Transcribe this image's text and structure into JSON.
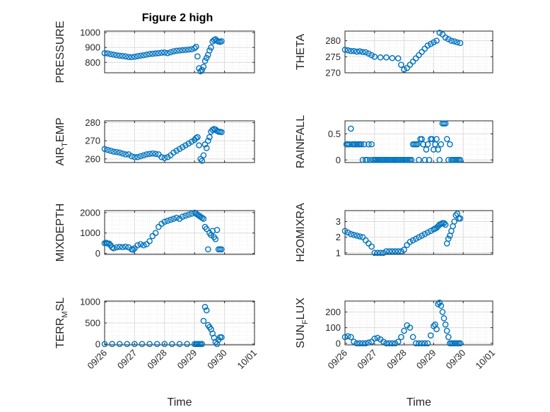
{
  "figure": {
    "title": "Figure 2 high",
    "marker_color": "#0072BD",
    "x_ticks": [
      "09/26",
      "09/27",
      "09/28",
      "09/29",
      "09/30",
      "10/01"
    ],
    "x_label": "Time"
  },
  "chart_data": [
    {
      "type": "scatter",
      "ylabel": "PRESSURE",
      "ylim": [
        730,
        1010
      ],
      "yticks": [
        800,
        900,
        1000
      ],
      "xlim": [
        0,
        5
      ],
      "grid": true,
      "series": [
        {
          "x": [
            0,
            0.1,
            0.2,
            0.3,
            0.4,
            0.5,
            0.6,
            0.7,
            0.8,
            0.9,
            1.0,
            1.1,
            1.2,
            1.3,
            1.4,
            1.5,
            1.6,
            1.7,
            1.8,
            1.9,
            2.0,
            2.1,
            2.2,
            2.3,
            2.4,
            2.5,
            2.6,
            2.7,
            2.8,
            2.9,
            3.0,
            3.05,
            3.1,
            3.15,
            3.2,
            3.25,
            3.3,
            3.35,
            3.4,
            3.45,
            3.5,
            3.55,
            3.6,
            3.65,
            3.7,
            3.75,
            3.8,
            3.85,
            3.9
          ],
          "y": [
            862,
            860,
            855,
            852,
            848,
            845,
            843,
            840,
            836,
            835,
            838,
            842,
            845,
            848,
            852,
            856,
            858,
            860,
            862,
            865,
            866,
            862,
            868,
            874,
            878,
            880,
            882,
            884,
            886,
            888,
            895,
            905,
            840,
            760,
            740,
            750,
            770,
            810,
            830,
            850,
            880,
            900,
            940,
            950,
            955,
            945,
            940,
            938,
            942
          ]
        }
      ]
    },
    {
      "type": "scatter",
      "ylabel": "THETA",
      "ylim": [
        270,
        283
      ],
      "yticks": [
        270,
        275,
        280
      ],
      "xlim": [
        0,
        5
      ],
      "grid": true,
      "series": [
        {
          "x": [
            0,
            0.1,
            0.2,
            0.3,
            0.4,
            0.5,
            0.6,
            0.7,
            0.8,
            0.9,
            1.0,
            1.2,
            1.4,
            1.6,
            1.8,
            1.9,
            2.0,
            2.1,
            2.2,
            2.3,
            2.4,
            2.5,
            2.6,
            2.7,
            2.8,
            2.9,
            3.0,
            3.1,
            3.2,
            3.3,
            3.4,
            3.5,
            3.6,
            3.7,
            3.8,
            3.9
          ],
          "y": [
            277.2,
            277,
            276.8,
            276.8,
            276.6,
            276.7,
            276.5,
            276.4,
            276,
            275.5,
            275,
            274.8,
            274.8,
            274.6,
            274.5,
            272.5,
            271,
            271.5,
            272.5,
            273.5,
            274.5,
            275.5,
            276.5,
            277.5,
            278.5,
            279,
            279.5,
            280,
            282.5,
            282,
            281,
            280.5,
            280,
            279.8,
            279.5,
            279.3
          ]
        }
      ]
    },
    {
      "type": "scatter",
      "ylabel": "AIR_TEMP",
      "ylim": [
        258,
        281
      ],
      "yticks": [
        260,
        270,
        280
      ],
      "xlim": [
        0,
        5
      ],
      "grid": true,
      "series": [
        {
          "x": [
            0,
            0.1,
            0.2,
            0.3,
            0.4,
            0.5,
            0.6,
            0.7,
            0.8,
            0.9,
            1.0,
            1.1,
            1.2,
            1.3,
            1.4,
            1.5,
            1.6,
            1.7,
            1.8,
            1.9,
            2.0,
            2.1,
            2.2,
            2.3,
            2.4,
            2.5,
            2.6,
            2.7,
            2.8,
            2.9,
            3.0,
            3.05,
            3.1,
            3.15,
            3.2,
            3.25,
            3.3,
            3.35,
            3.4,
            3.45,
            3.5,
            3.55,
            3.6,
            3.65,
            3.7,
            3.75,
            3.8,
            3.85,
            3.9
          ],
          "y": [
            265.5,
            265,
            264.5,
            264,
            263.8,
            263.5,
            263,
            262.5,
            262.5,
            261.5,
            261,
            261,
            261.5,
            262,
            262.5,
            262.8,
            263,
            262.8,
            262.5,
            261,
            260.5,
            261,
            262,
            263.5,
            264.5,
            265.5,
            266.5,
            267.5,
            268.5,
            269.5,
            270.5,
            271.5,
            272,
            267.5,
            260,
            259,
            262,
            268,
            266,
            270,
            272,
            275,
            276,
            276.5,
            276.2,
            275.5,
            275,
            275,
            274.8
          ]
        }
      ]
    },
    {
      "type": "scatter",
      "ylabel": "RAINFALL",
      "ylim": [
        -0.05,
        0.75
      ],
      "yticks": [
        0,
        0.5
      ],
      "ytick_labels": [
        "0",
        "0.5"
      ],
      "xlim": [
        0,
        5
      ],
      "grid": true,
      "series": [
        {
          "x": [
            0.05,
            0.1,
            0.15,
            0.2,
            0.25,
            0.3,
            0.35,
            0.4,
            0.45,
            0.5,
            0.55,
            0.6,
            0.65,
            0.7,
            0.75,
            0.8,
            0.85,
            0.9,
            0.95,
            1.0,
            1.05,
            1.1,
            1.15,
            1.2,
            1.25,
            1.3,
            1.35,
            1.4,
            1.45,
            1.5,
            1.55,
            1.6,
            1.65,
            1.7,
            1.75,
            1.8,
            1.85,
            1.9,
            1.95,
            2.0,
            2.05,
            2.1,
            2.15,
            2.2,
            2.25,
            2.3,
            2.35,
            2.4,
            2.45,
            2.5,
            2.55,
            2.6,
            2.65,
            2.7,
            2.75,
            2.8,
            2.85,
            2.9,
            2.95,
            3.0,
            3.05,
            3.1,
            3.15,
            3.2,
            3.25,
            3.3,
            3.35,
            3.4,
            3.45,
            3.5,
            3.55,
            3.6,
            3.65,
            3.7,
            3.75,
            3.8,
            3.85,
            3.9
          ],
          "y": [
            0.3,
            0.3,
            0.3,
            0.6,
            0.3,
            0.3,
            0.3,
            0.3,
            0.3,
            0.3,
            0.3,
            0,
            0.3,
            0,
            0,
            0.3,
            0,
            0.3,
            0,
            0,
            0,
            0,
            0,
            0,
            0,
            0,
            0,
            0,
            0,
            0,
            0,
            0,
            0,
            0,
            0,
            0,
            0,
            0,
            0,
            0,
            0,
            0,
            0,
            0,
            0,
            0.3,
            0.3,
            0.3,
            0.3,
            0,
            0.4,
            0.4,
            0.3,
            0,
            0.2,
            0.3,
            0,
            0.4,
            0.4,
            0.2,
            0.3,
            0.4,
            0.2,
            0,
            0.3,
            0.7,
            0.7,
            0.7,
            0.4,
            0,
            0.3,
            0,
            0,
            0,
            0,
            0,
            0,
            0
          ]
        }
      ]
    },
    {
      "type": "scatter",
      "ylabel": "MIXDEPTH",
      "ylim": [
        -50,
        2100
      ],
      "yticks": [
        0,
        1000,
        2000
      ],
      "xlim": [
        0,
        5
      ],
      "grid": true,
      "series": [
        {
          "x": [
            0,
            0.05,
            0.1,
            0.15,
            0.2,
            0.25,
            0.3,
            0.4,
            0.5,
            0.6,
            0.7,
            0.8,
            0.9,
            0.95,
            1.0,
            1.1,
            1.2,
            1.3,
            1.4,
            1.5,
            1.6,
            1.7,
            1.8,
            1.9,
            2.0,
            2.1,
            2.2,
            2.3,
            2.4,
            2.5,
            2.6,
            2.7,
            2.8,
            2.9,
            3.0,
            3.05,
            3.1,
            3.15,
            3.2,
            3.25,
            3.3,
            3.35,
            3.4,
            3.45,
            3.5,
            3.55,
            3.6,
            3.65,
            3.7,
            3.75,
            3.8,
            3.85,
            3.9
          ],
          "y": [
            500,
            520,
            490,
            480,
            400,
            300,
            250,
            300,
            320,
            310,
            330,
            300,
            200,
            180,
            250,
            400,
            450,
            400,
            450,
            600,
            850,
            1000,
            1300,
            1450,
            1550,
            1600,
            1650,
            1700,
            1750,
            1700,
            1800,
            1850,
            1900,
            1950,
            2000,
            1950,
            1900,
            1850,
            1800,
            1750,
            1700,
            1300,
            1200,
            200,
            1000,
            900,
            1100,
            800,
            700,
            1150,
            200,
            200,
            200
          ]
        }
      ]
    },
    {
      "type": "scatter",
      "ylabel": "H2OMIXRA",
      "ylim": [
        0.9,
        3.7
      ],
      "yticks": [
        1,
        2,
        3
      ],
      "xlim": [
        0,
        5
      ],
      "grid": true,
      "series": [
        {
          "x": [
            0,
            0.1,
            0.2,
            0.3,
            0.4,
            0.5,
            0.6,
            0.7,
            0.8,
            0.9,
            1.0,
            1.1,
            1.2,
            1.3,
            1.4,
            1.5,
            1.6,
            1.7,
            1.8,
            1.9,
            2.0,
            2.1,
            2.2,
            2.3,
            2.4,
            2.5,
            2.6,
            2.7,
            2.8,
            2.9,
            3.0,
            3.05,
            3.1,
            3.15,
            3.2,
            3.25,
            3.3,
            3.35,
            3.4,
            3.45,
            3.5,
            3.55,
            3.6,
            3.65,
            3.7,
            3.75,
            3.8,
            3.85,
            3.9
          ],
          "y": [
            2.4,
            2.3,
            2.2,
            2.15,
            2.1,
            2.05,
            2.0,
            1.8,
            1.6,
            1.4,
            1.0,
            1.0,
            1.0,
            1.0,
            1.1,
            1.1,
            1.1,
            1.1,
            1.1,
            1.1,
            1.2,
            1.5,
            1.7,
            1.8,
            1.9,
            2.0,
            2.1,
            2.2,
            2.3,
            2.4,
            2.5,
            2.55,
            2.6,
            2.7,
            2.8,
            2.85,
            2.9,
            2.9,
            2.8,
            1.6,
            1.9,
            2.1,
            2.4,
            2.7,
            3.0,
            3.4,
            3.5,
            3.2,
            3.2
          ]
        }
      ]
    },
    {
      "type": "scatter",
      "ylabel": "TERR_MSL",
      "ylim": [
        -20,
        1020
      ],
      "yticks": [
        0,
        500,
        1000
      ],
      "xlim": [
        0,
        5
      ],
      "grid": true,
      "series": [
        {
          "x": [
            0,
            0.25,
            0.5,
            0.75,
            1.0,
            1.25,
            1.5,
            1.75,
            2.0,
            2.25,
            2.5,
            2.75,
            3.0,
            3.05,
            3.1,
            3.15,
            3.2,
            3.25,
            3.3,
            3.35,
            3.4,
            3.45,
            3.5,
            3.55,
            3.6,
            3.65,
            3.7,
            3.75,
            3.8,
            3.85,
            3.9
          ],
          "y": [
            0,
            0,
            0,
            0,
            0,
            0,
            0,
            0,
            0,
            0,
            0,
            0,
            0,
            0,
            0,
            0,
            0,
            0,
            550,
            880,
            800,
            450,
            400,
            350,
            250,
            150,
            50,
            0,
            100,
            160,
            160
          ]
        }
      ]
    },
    {
      "type": "scatter",
      "ylabel": "SUN_FLUX",
      "ylim": [
        -10,
        270
      ],
      "yticks": [
        0,
        100,
        200
      ],
      "xlim": [
        0,
        5
      ],
      "grid": true,
      "series": [
        {
          "x": [
            0,
            0.1,
            0.2,
            0.3,
            0.4,
            0.5,
            0.6,
            0.7,
            0.8,
            0.9,
            1.0,
            1.1,
            1.2,
            1.3,
            1.4,
            1.5,
            1.6,
            1.7,
            1.8,
            1.9,
            2.0,
            2.1,
            2.2,
            2.3,
            2.4,
            2.5,
            2.6,
            2.7,
            2.8,
            2.9,
            3.0,
            3.05,
            3.1,
            3.15,
            3.2,
            3.25,
            3.3,
            3.35,
            3.4,
            3.45,
            3.5,
            3.55,
            3.6,
            3.65,
            3.7,
            3.75,
            3.8,
            3.85,
            3.9
          ],
          "y": [
            40,
            45,
            40,
            10,
            0,
            0,
            0,
            0,
            5,
            10,
            30,
            35,
            25,
            10,
            0,
            0,
            0,
            0,
            10,
            40,
            80,
            115,
            100,
            40,
            0,
            0,
            0,
            0,
            0,
            50,
            110,
            120,
            90,
            250,
            260,
            240,
            200,
            160,
            120,
            80,
            40,
            0,
            0,
            0,
            0,
            0,
            0,
            0,
            0
          ]
        }
      ]
    }
  ]
}
